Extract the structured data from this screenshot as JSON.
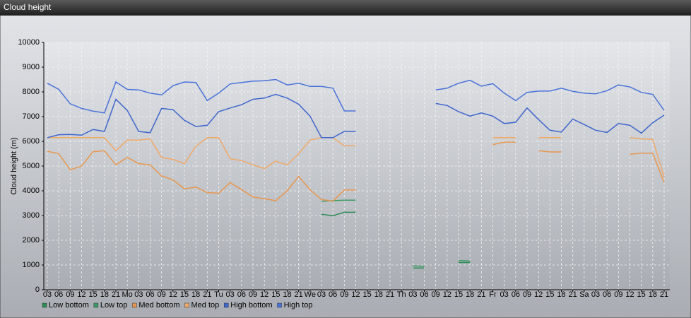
{
  "header": {
    "title": "Cloud height"
  },
  "chart_data": {
    "type": "line",
    "ylabel": "Cloud height (m)",
    "categories": [
      "03",
      "06",
      "09",
      "12",
      "15",
      "18",
      "21",
      "Mo",
      "03",
      "06",
      "09",
      "12",
      "15",
      "18",
      "21",
      "Tu",
      "03",
      "06",
      "09",
      "12",
      "15",
      "18",
      "21",
      "We",
      "03",
      "06",
      "09",
      "12",
      "15",
      "18",
      "21",
      "Th",
      "03",
      "06",
      "09",
      "12",
      "15",
      "18",
      "21",
      "Fr",
      "03",
      "06",
      "09",
      "12",
      "15",
      "18",
      "21",
      "Sa",
      "03",
      "06",
      "09",
      "12",
      "15",
      "18",
      "21"
    ],
    "ylim": [
      0,
      10000
    ],
    "yticks": [
      0,
      1000,
      2000,
      3000,
      4000,
      5000,
      6000,
      7000,
      8000,
      9000,
      10000
    ],
    "grid": true,
    "legend": "bottom-left",
    "series": [
      {
        "name": "Low bottom",
        "color": "#2e8b57",
        "values": [
          null,
          null,
          null,
          null,
          null,
          null,
          null,
          null,
          null,
          null,
          null,
          null,
          null,
          null,
          null,
          null,
          null,
          null,
          null,
          null,
          null,
          null,
          null,
          null,
          3050,
          2990,
          3130,
          3130,
          null,
          null,
          null,
          null,
          880,
          880,
          null,
          null,
          1100,
          1100,
          null,
          null,
          null,
          null,
          null,
          null,
          null,
          null,
          null,
          null,
          null,
          null,
          null,
          null,
          null,
          null,
          null
        ]
      },
      {
        "name": "Low top",
        "color": "#3a9a66",
        "values": [
          null,
          null,
          null,
          null,
          null,
          null,
          null,
          null,
          null,
          null,
          null,
          null,
          null,
          null,
          null,
          null,
          null,
          null,
          null,
          null,
          null,
          null,
          null,
          null,
          3580,
          3600,
          3620,
          3620,
          null,
          null,
          null,
          null,
          970,
          950,
          null,
          null,
          1180,
          1160,
          null,
          null,
          null,
          null,
          null,
          null,
          null,
          null,
          null,
          null,
          null,
          null,
          null,
          null,
          null,
          null,
          null
        ]
      },
      {
        "name": "Med bottom",
        "color": "#e8974e",
        "values": [
          5600,
          5500,
          4850,
          5000,
          5580,
          5620,
          5050,
          5350,
          5100,
          5050,
          4600,
          4450,
          4080,
          4150,
          3930,
          3900,
          4330,
          4050,
          3750,
          3680,
          3600,
          4000,
          4580,
          4050,
          3650,
          3580,
          4030,
          4030,
          null,
          null,
          null,
          null,
          null,
          null,
          null,
          null,
          null,
          null,
          null,
          5870,
          5970,
          5970,
          null,
          5620,
          5570,
          5570,
          null,
          null,
          null,
          null,
          null,
          5480,
          5520,
          5520,
          4330
        ]
      },
      {
        "name": "Med top",
        "color": "#f0a868",
        "values": [
          6150,
          6150,
          6150,
          6150,
          6150,
          6150,
          5620,
          6050,
          6050,
          6100,
          5350,
          5270,
          5100,
          5800,
          6150,
          6150,
          5300,
          5220,
          5050,
          4900,
          5200,
          5050,
          5500,
          6050,
          6150,
          6150,
          5820,
          5820,
          null,
          null,
          null,
          null,
          null,
          null,
          null,
          null,
          null,
          null,
          null,
          6150,
          6150,
          6150,
          null,
          6150,
          6150,
          6150,
          null,
          null,
          null,
          null,
          null,
          6150,
          6100,
          6080,
          4550
        ]
      },
      {
        "name": "High bottom",
        "color": "#3f66cc",
        "values": [
          6150,
          6270,
          6280,
          6250,
          6480,
          6400,
          7700,
          7250,
          6400,
          6350,
          7330,
          7280,
          6850,
          6600,
          6650,
          7200,
          7350,
          7480,
          7700,
          7750,
          7900,
          7750,
          7500,
          7020,
          6150,
          6150,
          6400,
          6400,
          null,
          null,
          null,
          null,
          null,
          null,
          7530,
          7450,
          7200,
          7020,
          7150,
          7020,
          6720,
          6770,
          7350,
          6880,
          6450,
          6370,
          6900,
          6680,
          6450,
          6360,
          6720,
          6650,
          6330,
          6750,
          7060
        ]
      },
      {
        "name": "High top",
        "color": "#4a72d8",
        "values": [
          8350,
          8100,
          7520,
          7330,
          7220,
          7150,
          8400,
          8100,
          8080,
          7950,
          7880,
          8250,
          8400,
          8380,
          7650,
          7950,
          8320,
          8380,
          8430,
          8450,
          8500,
          8280,
          8350,
          8220,
          8220,
          8150,
          7230,
          7230,
          null,
          null,
          null,
          null,
          null,
          null,
          8080,
          8150,
          8350,
          8470,
          8230,
          8330,
          7950,
          7650,
          7980,
          8030,
          8030,
          8150,
          8020,
          7950,
          7920,
          8050,
          8280,
          8200,
          7980,
          7900,
          7250
        ]
      }
    ]
  }
}
